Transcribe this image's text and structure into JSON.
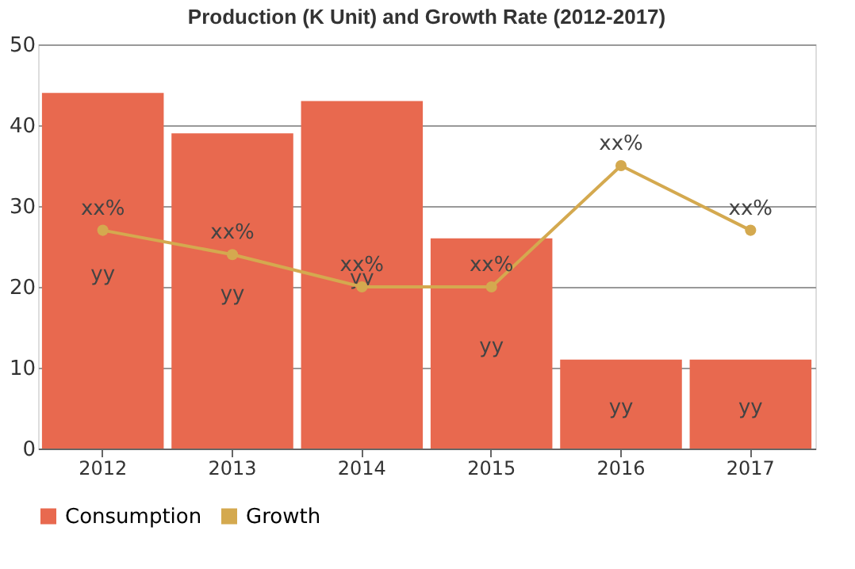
{
  "chart_data": {
    "type": "bar",
    "title": "Production (K Unit) and Growth Rate (2012-2017)",
    "categories": [
      "2012",
      "2013",
      "2014",
      "2015",
      "2016",
      "2017"
    ],
    "series": [
      {
        "name": "Consumption",
        "color": "#e8694f",
        "values": [
          44,
          39,
          43,
          26,
          11,
          11
        ],
        "value_labels": [
          "yy",
          "yy",
          "yy",
          "yy",
          "yy",
          "yy"
        ]
      },
      {
        "name": "Growth",
        "type": "line",
        "color": "#d4a94f",
        "values": [
          27,
          24,
          20,
          20,
          35,
          27
        ],
        "value_labels": [
          "xx%",
          "xx%",
          "xx%",
          "xx%",
          "xx%",
          "xx%"
        ]
      }
    ],
    "ylim": [
      0,
      50
    ],
    "yticks": [
      0,
      10,
      20,
      30,
      40,
      50
    ],
    "grid": "y",
    "legend": "bottom",
    "marker": "circle"
  }
}
